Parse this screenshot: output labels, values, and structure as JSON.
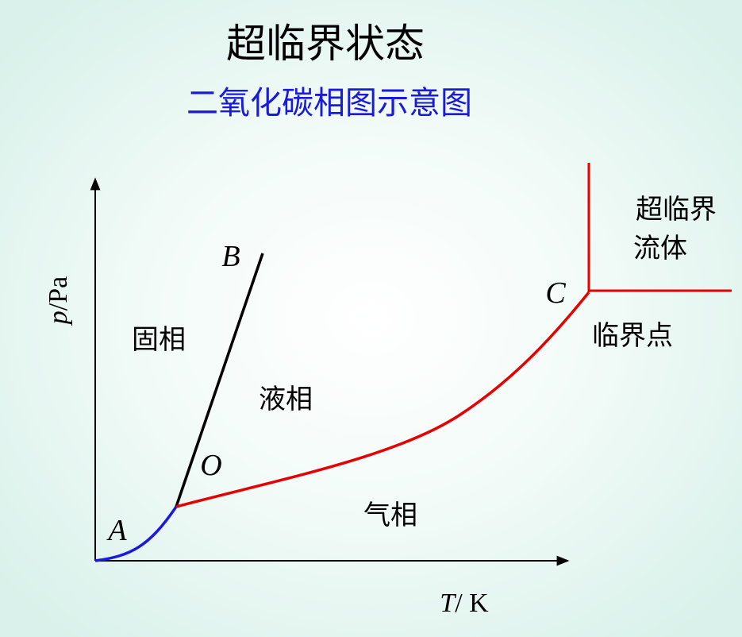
{
  "header": {
    "title": "超临界状态",
    "subtitle": "二氧化碳相图示意图"
  },
  "axes": {
    "y": {
      "symbol": "p",
      "unit": "/Pa"
    },
    "x": {
      "symbol": "T",
      "unit": "/ K"
    }
  },
  "points": {
    "A": "A",
    "O": "O",
    "B": "B",
    "C": "C"
  },
  "regions": {
    "solid": "固相",
    "liquid": "液相",
    "gas": "气相",
    "supercritical": [
      "超临界",
      "流体"
    ],
    "critical_point": "临界点"
  }
}
